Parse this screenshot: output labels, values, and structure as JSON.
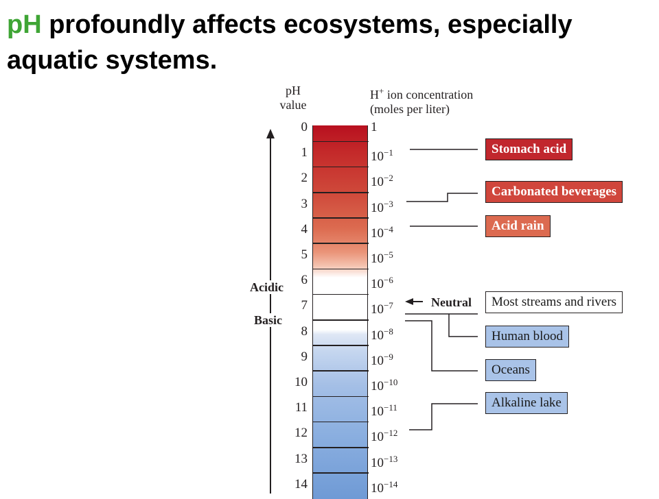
{
  "slide": {
    "title_accent": "pH",
    "title_rest": " profoundly affects ecosystems, especially aquatic systems."
  },
  "diagram": {
    "ph_header": [
      "pH",
      "value"
    ],
    "conc_header": {
      "base": "H",
      "sup": "+",
      "line1_rest": " ion concentration",
      "line2": "(moles per liter)"
    },
    "ph_values": [
      "0",
      "1",
      "2",
      "3",
      "4",
      "5",
      "6",
      "7",
      "8",
      "9",
      "10",
      "11",
      "12",
      "13",
      "14"
    ],
    "concentrations": [
      {
        "base": "1",
        "exp": ""
      },
      {
        "base": "10",
        "exp": "−1"
      },
      {
        "base": "10",
        "exp": "−2"
      },
      {
        "base": "10",
        "exp": "−3"
      },
      {
        "base": "10",
        "exp": "−4"
      },
      {
        "base": "10",
        "exp": "−5"
      },
      {
        "base": "10",
        "exp": "−6"
      },
      {
        "base": "10",
        "exp": "−7"
      },
      {
        "base": "10",
        "exp": "−8"
      },
      {
        "base": "10",
        "exp": "−9"
      },
      {
        "base": "10",
        "exp": "−10"
      },
      {
        "base": "10",
        "exp": "−11"
      },
      {
        "base": "10",
        "exp": "−12"
      },
      {
        "base": "10",
        "exp": "−13"
      },
      {
        "base": "10",
        "exp": "−14"
      }
    ],
    "acidic_label": "Acidic",
    "basic_label": "Basic",
    "neutral_label": "Neutral",
    "examples": [
      {
        "label": "Stomach acid",
        "style": "red",
        "color": "#c1272d",
        "ph": 1
      },
      {
        "label": "Carbonated beverages",
        "style": "red",
        "color": "#d0463c",
        "ph": 3
      },
      {
        "label": "Acid rain",
        "style": "red",
        "color": "#dc6a50",
        "ph": 4
      },
      {
        "label": "Most streams and rivers",
        "style": "white",
        "color": "#ffffff",
        "ph": 7
      },
      {
        "label": "Human blood",
        "style": "blue",
        "color": "#a9c3e8",
        "ph": 7.4
      },
      {
        "label": "Oceans",
        "style": "blue",
        "color": "#a9c3e8",
        "ph": 8
      },
      {
        "label": "Alkaline lake",
        "style": "blue",
        "color": "#a9c3e8",
        "ph": 12
      }
    ]
  }
}
